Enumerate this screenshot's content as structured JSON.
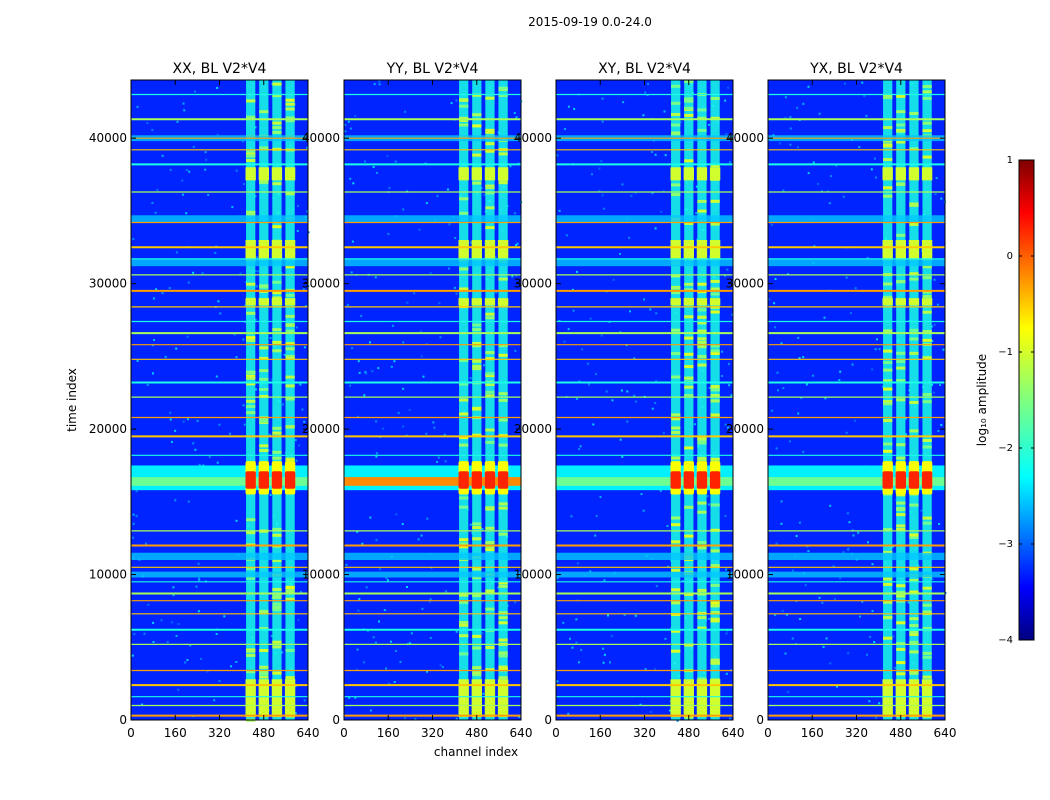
{
  "chart_data": {
    "type": "heatmap",
    "suptitle": "2015-09-19 0.0-24.0",
    "xlabel": "channel index",
    "ylabel": "time index",
    "xlim": [
      0,
      640
    ],
    "ylim": [
      0,
      44000
    ],
    "xticks": [
      0,
      160,
      320,
      480,
      640
    ],
    "yticks": [
      0,
      10000,
      20000,
      30000,
      40000
    ],
    "panels": [
      {
        "title": "XX, BL V2*V4"
      },
      {
        "title": "YY, BL V2*V4"
      },
      {
        "title": "XY, BL V2*V4"
      },
      {
        "title": "YX, BL V2*V4"
      }
    ],
    "colorbar": {
      "label": "log₁₀ amplitude",
      "range": [
        -4,
        1
      ],
      "ticks": [
        "1",
        "0",
        "−1",
        "−2",
        "−3",
        "−4"
      ],
      "colormap": "jet"
    },
    "features": {
      "rfi_channel_band": [
        410,
        600
      ],
      "bright_time_band": [
        15800,
        17500
      ],
      "flagged_time_rows": [
        300,
        1000,
        1600,
        2400,
        3400,
        5200,
        6200,
        7300,
        8200,
        8700,
        9500,
        10500,
        12000,
        13000,
        18200,
        19500,
        20800,
        22200,
        23200,
        24800,
        25800,
        26600,
        27400,
        28400,
        29500,
        30600,
        31700,
        32500,
        34200,
        36300,
        38200,
        39200,
        40000,
        41300,
        43000
      ]
    }
  }
}
